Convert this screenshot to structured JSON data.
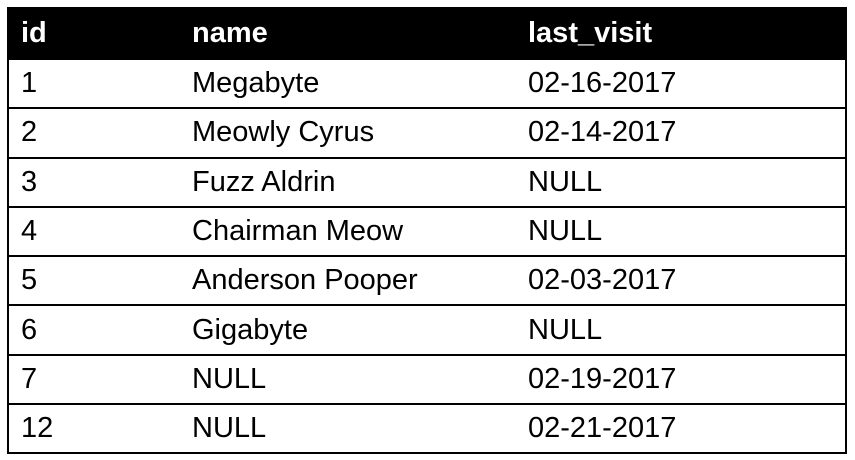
{
  "table": {
    "headers": [
      "id",
      "name",
      "last_visit"
    ],
    "rows": [
      [
        "1",
        "Megabyte",
        "02-16-2017"
      ],
      [
        "2",
        "Meowly Cyrus",
        "02-14-2017"
      ],
      [
        "3",
        "Fuzz Aldrin",
        "NULL"
      ],
      [
        "4",
        "Chairman Meow",
        "NULL"
      ],
      [
        "5",
        "Anderson Pooper",
        "02-03-2017"
      ],
      [
        "6",
        "Gigabyte",
        "NULL"
      ],
      [
        "7",
        "NULL",
        "02-19-2017"
      ],
      [
        "12",
        "NULL",
        "02-21-2017"
      ]
    ]
  }
}
